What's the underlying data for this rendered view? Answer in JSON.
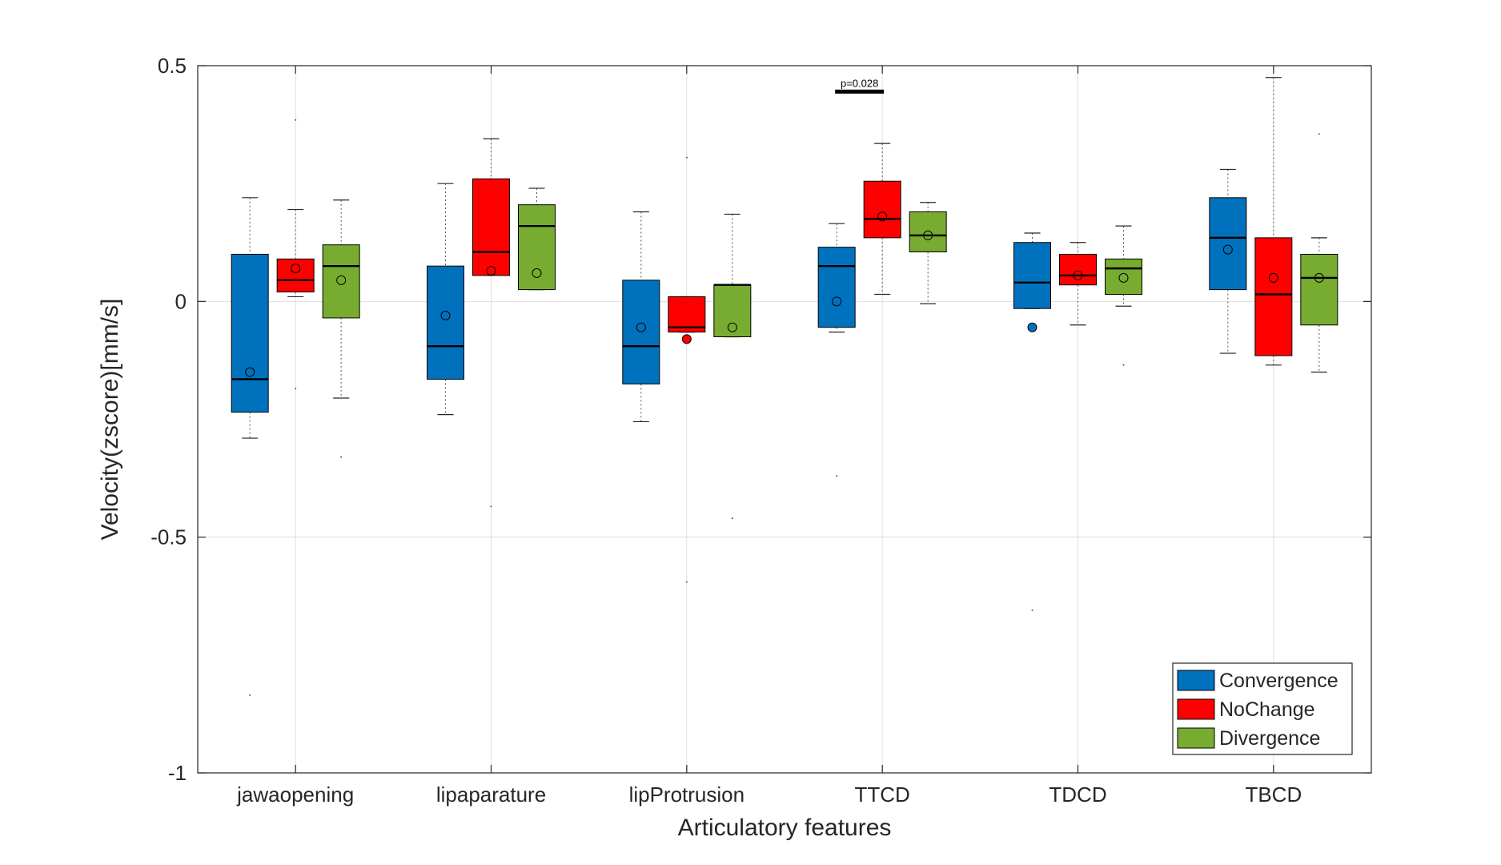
{
  "chart_data": {
    "type": "box",
    "title": "",
    "xlabel": "Articulatory features",
    "ylabel": "Velocity(zscore)[mm/s]",
    "ylim": [
      -1,
      0.5
    ],
    "yticks": [
      -1,
      -0.5,
      0,
      0.5
    ],
    "ytick_labels": [
      "-1",
      "-0.5",
      "0",
      "0.5"
    ],
    "grid": true,
    "legend_position": "bottom-right",
    "categories": [
      "jawaopening",
      "lipaparature",
      "lipProtrusion",
      "TTCD",
      "TDCD",
      "TBCD"
    ],
    "series": [
      {
        "name": "Convergence",
        "color": "#0072BD",
        "boxes": [
          {
            "whisker_low": -0.29,
            "q1": -0.235,
            "median": -0.165,
            "q3": 0.1,
            "whisker_high": 0.22,
            "mean": -0.15,
            "outliers": [
              -0.835
            ]
          },
          {
            "whisker_low": -0.24,
            "q1": -0.165,
            "median": -0.095,
            "q3": 0.075,
            "whisker_high": 0.25,
            "mean": -0.03,
            "outliers": []
          },
          {
            "whisker_low": -0.255,
            "q1": -0.175,
            "median": -0.095,
            "q3": 0.045,
            "whisker_high": 0.19,
            "mean": -0.055,
            "outliers": []
          },
          {
            "whisker_low": -0.065,
            "q1": -0.055,
            "median": 0.075,
            "q3": 0.115,
            "whisker_high": 0.165,
            "mean": 0.0,
            "outliers": [
              -0.37
            ]
          },
          {
            "whisker_low": -0.015,
            "q1": -0.015,
            "median": 0.04,
            "q3": 0.125,
            "whisker_high": 0.145,
            "mean": -0.055,
            "outliers": [
              -0.655
            ]
          },
          {
            "whisker_low": -0.11,
            "q1": 0.025,
            "median": 0.135,
            "q3": 0.22,
            "whisker_high": 0.28,
            "mean": 0.11,
            "outliers": []
          }
        ]
      },
      {
        "name": "NoChange",
        "color": "#FF0000",
        "boxes": [
          {
            "whisker_low": 0.01,
            "q1": 0.02,
            "median": 0.045,
            "q3": 0.09,
            "whisker_high": 0.195,
            "mean": 0.07,
            "outliers": [
              0.385,
              -0.185
            ]
          },
          {
            "whisker_low": 0.055,
            "q1": 0.055,
            "median": 0.105,
            "q3": 0.26,
            "whisker_high": 0.345,
            "mean": 0.065,
            "outliers": [
              -0.435
            ]
          },
          {
            "whisker_low": -0.065,
            "q1": -0.065,
            "median": -0.055,
            "q3": 0.01,
            "whisker_high": 0.01,
            "mean": -0.08,
            "outliers": [
              0.305,
              -0.595
            ]
          },
          {
            "whisker_low": 0.015,
            "q1": 0.135,
            "median": 0.175,
            "q3": 0.255,
            "whisker_high": 0.335,
            "mean": 0.18,
            "outliers": []
          },
          {
            "whisker_low": -0.05,
            "q1": 0.035,
            "median": 0.055,
            "q3": 0.1,
            "whisker_high": 0.125,
            "mean": 0.055,
            "outliers": []
          },
          {
            "whisker_low": -0.135,
            "q1": -0.115,
            "median": 0.015,
            "q3": 0.135,
            "whisker_high": 0.475,
            "mean": 0.05,
            "outliers": []
          }
        ]
      },
      {
        "name": "Divergence",
        "color": "#77AC30",
        "boxes": [
          {
            "whisker_low": -0.205,
            "q1": -0.035,
            "median": 0.075,
            "q3": 0.12,
            "whisker_high": 0.215,
            "mean": 0.045,
            "outliers": [
              -0.33
            ]
          },
          {
            "whisker_low": 0.025,
            "q1": 0.025,
            "median": 0.16,
            "q3": 0.205,
            "whisker_high": 0.24,
            "mean": 0.06,
            "outliers": []
          },
          {
            "whisker_low": -0.075,
            "q1": -0.075,
            "median": 0.035,
            "q3": 0.035,
            "whisker_high": 0.185,
            "mean": -0.055,
            "outliers": [
              -0.46
            ]
          },
          {
            "whisker_low": -0.005,
            "q1": 0.105,
            "median": 0.14,
            "q3": 0.19,
            "whisker_high": 0.21,
            "mean": 0.14,
            "outliers": []
          },
          {
            "whisker_low": -0.01,
            "q1": 0.015,
            "median": 0.07,
            "q3": 0.09,
            "whisker_high": 0.16,
            "mean": 0.05,
            "outliers": [
              -0.135
            ]
          },
          {
            "whisker_low": -0.15,
            "q1": -0.05,
            "median": 0.05,
            "q3": 0.1,
            "whisker_high": 0.135,
            "mean": 0.05,
            "outliers": [
              0.355
            ]
          }
        ]
      }
    ],
    "annotations": [
      {
        "text": "p=0.028",
        "category": "TTCD",
        "y": 0.445
      }
    ]
  }
}
